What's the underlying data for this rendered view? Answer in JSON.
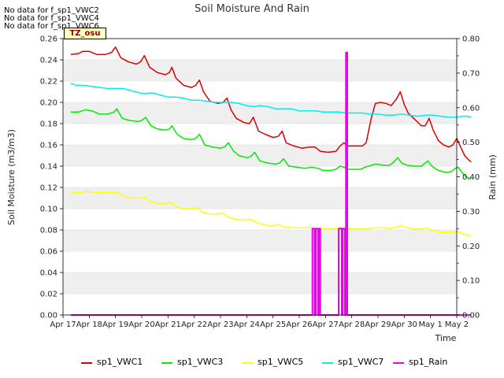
{
  "chart_data": {
    "type": "line",
    "title": "Soil Moisture And Rain",
    "xlabel": "Time",
    "ylabel_left": "Soil Moisture (m3/m3)",
    "ylabel_right": "Rain (mm)",
    "ylim_left": [
      0.0,
      0.26
    ],
    "ylim_right": [
      0.0,
      0.8
    ],
    "xlim": [
      0,
      15
    ],
    "x_tick_labels": [
      "Apr 17",
      "Apr 18",
      "Apr 19",
      "Apr 20",
      "Apr 21",
      "Apr 22",
      "Apr 23",
      "Apr 24",
      "Apr 25",
      "Apr 26",
      "Apr 27",
      "Apr 28",
      "Apr 29",
      "Apr 30",
      "May 1",
      "May 2"
    ],
    "y_tick_labels_left": [
      "0.00",
      "0.02",
      "0.04",
      "0.06",
      "0.08",
      "0.10",
      "0.12",
      "0.14",
      "0.16",
      "0.18",
      "0.20",
      "0.22",
      "0.24",
      "0.26"
    ],
    "y_tick_labels_right": [
      "0.00",
      "0.10",
      "0.20",
      "0.30",
      "0.40",
      "0.50",
      "0.60",
      "0.70",
      "0.80"
    ],
    "grid": true,
    "legend_position": "bottom",
    "series": [
      {
        "name": "sp1_VWC1",
        "color": "#dd0000",
        "axis": "left",
        "points": [
          [
            0.3,
            0.245
          ],
          [
            0.6,
            0.246
          ],
          [
            0.75,
            0.248
          ],
          [
            1.0,
            0.248
          ],
          [
            1.3,
            0.245
          ],
          [
            1.6,
            0.245
          ],
          [
            1.85,
            0.247
          ],
          [
            2.0,
            0.252
          ],
          [
            2.2,
            0.242
          ],
          [
            2.5,
            0.238
          ],
          [
            2.8,
            0.236
          ],
          [
            2.95,
            0.238
          ],
          [
            3.1,
            0.244
          ],
          [
            3.3,
            0.233
          ],
          [
            3.6,
            0.228
          ],
          [
            3.9,
            0.226
          ],
          [
            4.05,
            0.228
          ],
          [
            4.15,
            0.233
          ],
          [
            4.3,
            0.223
          ],
          [
            4.6,
            0.216
          ],
          [
            4.9,
            0.214
          ],
          [
            5.05,
            0.216
          ],
          [
            5.2,
            0.221
          ],
          [
            5.35,
            0.21
          ],
          [
            5.6,
            0.201
          ],
          [
            5.9,
            0.199
          ],
          [
            6.1,
            0.2
          ],
          [
            6.25,
            0.204
          ],
          [
            6.4,
            0.193
          ],
          [
            6.6,
            0.185
          ],
          [
            6.9,
            0.181
          ],
          [
            7.1,
            0.18
          ],
          [
            7.25,
            0.186
          ],
          [
            7.45,
            0.173
          ],
          [
            7.7,
            0.17
          ],
          [
            8.0,
            0.167
          ],
          [
            8.2,
            0.168
          ],
          [
            8.35,
            0.173
          ],
          [
            8.5,
            0.162
          ],
          [
            8.8,
            0.159
          ],
          [
            9.1,
            0.157
          ],
          [
            9.4,
            0.158
          ],
          [
            9.6,
            0.158
          ],
          [
            9.8,
            0.154
          ],
          [
            10.1,
            0.153
          ],
          [
            10.4,
            0.154
          ],
          [
            10.55,
            0.159
          ],
          [
            10.7,
            0.162
          ],
          [
            10.85,
            0.159
          ],
          [
            11.1,
            0.159
          ],
          [
            11.4,
            0.159
          ],
          [
            11.55,
            0.162
          ],
          [
            11.75,
            0.186
          ],
          [
            11.9,
            0.199
          ],
          [
            12.1,
            0.2
          ],
          [
            12.3,
            0.199
          ],
          [
            12.5,
            0.197
          ],
          [
            12.7,
            0.203
          ],
          [
            12.85,
            0.21
          ],
          [
            13.0,
            0.198
          ],
          [
            13.15,
            0.19
          ],
          [
            13.4,
            0.184
          ],
          [
            13.65,
            0.178
          ],
          [
            13.8,
            0.178
          ],
          [
            13.95,
            0.185
          ],
          [
            14.1,
            0.174
          ],
          [
            14.3,
            0.164
          ],
          [
            14.5,
            0.16
          ],
          [
            14.7,
            0.158
          ],
          [
            14.85,
            0.16
          ],
          [
            15.0,
            0.166
          ],
          [
            15.15,
            0.158
          ],
          [
            15.3,
            0.15
          ],
          [
            15.45,
            0.146
          ],
          [
            15.55,
            0.144
          ]
        ]
      },
      {
        "name": "sp1_VWC3",
        "color": "#00ee00",
        "axis": "left",
        "points": [
          [
            0.3,
            0.191
          ],
          [
            0.6,
            0.191
          ],
          [
            0.85,
            0.193
          ],
          [
            1.1,
            0.192
          ],
          [
            1.4,
            0.189
          ],
          [
            1.7,
            0.189
          ],
          [
            1.95,
            0.191
          ],
          [
            2.05,
            0.194
          ],
          [
            2.25,
            0.185
          ],
          [
            2.55,
            0.183
          ],
          [
            2.85,
            0.182
          ],
          [
            3.0,
            0.183
          ],
          [
            3.15,
            0.186
          ],
          [
            3.35,
            0.178
          ],
          [
            3.6,
            0.175
          ],
          [
            3.9,
            0.174
          ],
          [
            4.05,
            0.175
          ],
          [
            4.15,
            0.178
          ],
          [
            4.35,
            0.17
          ],
          [
            4.6,
            0.166
          ],
          [
            4.9,
            0.165
          ],
          [
            5.05,
            0.166
          ],
          [
            5.2,
            0.17
          ],
          [
            5.4,
            0.16
          ],
          [
            5.7,
            0.158
          ],
          [
            6.0,
            0.157
          ],
          [
            6.15,
            0.158
          ],
          [
            6.3,
            0.162
          ],
          [
            6.5,
            0.154
          ],
          [
            6.7,
            0.15
          ],
          [
            7.0,
            0.148
          ],
          [
            7.15,
            0.149
          ],
          [
            7.3,
            0.153
          ],
          [
            7.5,
            0.145
          ],
          [
            7.8,
            0.143
          ],
          [
            8.1,
            0.142
          ],
          [
            8.25,
            0.143
          ],
          [
            8.4,
            0.147
          ],
          [
            8.6,
            0.14
          ],
          [
            8.9,
            0.139
          ],
          [
            9.2,
            0.138
          ],
          [
            9.5,
            0.139
          ],
          [
            9.7,
            0.138
          ],
          [
            9.9,
            0.136
          ],
          [
            10.2,
            0.136
          ],
          [
            10.4,
            0.137
          ],
          [
            10.55,
            0.14
          ],
          [
            10.7,
            0.139
          ],
          [
            10.85,
            0.137
          ],
          [
            11.1,
            0.137
          ],
          [
            11.35,
            0.137
          ],
          [
            11.5,
            0.139
          ],
          [
            11.65,
            0.14
          ],
          [
            11.9,
            0.142
          ],
          [
            12.2,
            0.141
          ],
          [
            12.45,
            0.141
          ],
          [
            12.6,
            0.144
          ],
          [
            12.75,
            0.148
          ],
          [
            12.9,
            0.143
          ],
          [
            13.1,
            0.141
          ],
          [
            13.4,
            0.14
          ],
          [
            13.65,
            0.14
          ],
          [
            13.8,
            0.143
          ],
          [
            13.9,
            0.145
          ],
          [
            14.05,
            0.14
          ],
          [
            14.3,
            0.136
          ],
          [
            14.6,
            0.134
          ],
          [
            14.8,
            0.135
          ],
          [
            14.95,
            0.138
          ],
          [
            15.05,
            0.139
          ],
          [
            15.2,
            0.134
          ],
          [
            15.35,
            0.13
          ],
          [
            15.55,
            0.128
          ]
        ]
      },
      {
        "name": "sp1_VWC5",
        "color": "#ffff00",
        "axis": "left",
        "points": [
          [
            0.3,
            0.115
          ],
          [
            0.7,
            0.115
          ],
          [
            0.85,
            0.116
          ],
          [
            1.0,
            0.116
          ],
          [
            1.3,
            0.115
          ],
          [
            1.6,
            0.115
          ],
          [
            1.9,
            0.115
          ],
          [
            2.1,
            0.115
          ],
          [
            2.3,
            0.112
          ],
          [
            2.6,
            0.11
          ],
          [
            2.9,
            0.11
          ],
          [
            3.1,
            0.111
          ],
          [
            3.3,
            0.107
          ],
          [
            3.6,
            0.105
          ],
          [
            3.9,
            0.105
          ],
          [
            4.1,
            0.106
          ],
          [
            4.3,
            0.102
          ],
          [
            4.6,
            0.1
          ],
          [
            4.9,
            0.1
          ],
          [
            5.1,
            0.101
          ],
          [
            5.3,
            0.097
          ],
          [
            5.6,
            0.095
          ],
          [
            5.9,
            0.095
          ],
          [
            6.1,
            0.096
          ],
          [
            6.3,
            0.092
          ],
          [
            6.6,
            0.09
          ],
          [
            6.9,
            0.089
          ],
          [
            7.1,
            0.09
          ],
          [
            7.3,
            0.088
          ],
          [
            7.6,
            0.085
          ],
          [
            7.9,
            0.084
          ],
          [
            8.2,
            0.085
          ],
          [
            8.4,
            0.083
          ],
          [
            8.7,
            0.082
          ],
          [
            9.0,
            0.082
          ],
          [
            9.4,
            0.082
          ],
          [
            9.7,
            0.081
          ],
          [
            10.0,
            0.081
          ],
          [
            10.3,
            0.081
          ],
          [
            10.6,
            0.082
          ],
          [
            10.8,
            0.081
          ],
          [
            11.1,
            0.081
          ],
          [
            11.4,
            0.081
          ],
          [
            11.6,
            0.081
          ],
          [
            11.9,
            0.082
          ],
          [
            12.2,
            0.082
          ],
          [
            12.5,
            0.081
          ],
          [
            12.75,
            0.083
          ],
          [
            12.9,
            0.084
          ],
          [
            13.1,
            0.082
          ],
          [
            13.4,
            0.081
          ],
          [
            13.7,
            0.081
          ],
          [
            13.9,
            0.082
          ],
          [
            14.05,
            0.08
          ],
          [
            14.3,
            0.078
          ],
          [
            14.6,
            0.078
          ],
          [
            14.9,
            0.078
          ],
          [
            15.0,
            0.079
          ],
          [
            15.2,
            0.077
          ],
          [
            15.4,
            0.075
          ],
          [
            15.55,
            0.075
          ]
        ]
      },
      {
        "name": "sp1_VWC7",
        "color": "#00eeee",
        "axis": "left",
        "points": [
          [
            0.3,
            0.218
          ],
          [
            0.5,
            0.216
          ],
          [
            0.8,
            0.216
          ],
          [
            1.1,
            0.215
          ],
          [
            1.4,
            0.214
          ],
          [
            1.7,
            0.213
          ],
          [
            2.0,
            0.213
          ],
          [
            2.3,
            0.213
          ],
          [
            2.6,
            0.211
          ],
          [
            2.9,
            0.209
          ],
          [
            3.1,
            0.208
          ],
          [
            3.4,
            0.209
          ],
          [
            3.7,
            0.207
          ],
          [
            4.0,
            0.205
          ],
          [
            4.3,
            0.205
          ],
          [
            4.6,
            0.204
          ],
          [
            4.9,
            0.202
          ],
          [
            5.2,
            0.202
          ],
          [
            5.5,
            0.201
          ],
          [
            5.8,
            0.2
          ],
          [
            6.1,
            0.2
          ],
          [
            6.4,
            0.2
          ],
          [
            6.7,
            0.199
          ],
          [
            7.0,
            0.197
          ],
          [
            7.3,
            0.196
          ],
          [
            7.5,
            0.197
          ],
          [
            7.8,
            0.196
          ],
          [
            8.1,
            0.194
          ],
          [
            8.4,
            0.194
          ],
          [
            8.7,
            0.194
          ],
          [
            9.0,
            0.192
          ],
          [
            9.3,
            0.192
          ],
          [
            9.6,
            0.192
          ],
          [
            9.9,
            0.191
          ],
          [
            10.2,
            0.191
          ],
          [
            10.5,
            0.191
          ],
          [
            10.8,
            0.19
          ],
          [
            11.1,
            0.19
          ],
          [
            11.4,
            0.19
          ],
          [
            11.7,
            0.189
          ],
          [
            12.0,
            0.189
          ],
          [
            12.3,
            0.188
          ],
          [
            12.6,
            0.188
          ],
          [
            12.9,
            0.189
          ],
          [
            13.2,
            0.188
          ],
          [
            13.5,
            0.187
          ],
          [
            13.8,
            0.188
          ],
          [
            14.1,
            0.188
          ],
          [
            14.4,
            0.187
          ],
          [
            14.7,
            0.186
          ],
          [
            15.0,
            0.186
          ],
          [
            15.2,
            0.187
          ],
          [
            15.4,
            0.187
          ],
          [
            15.55,
            0.186
          ]
        ]
      },
      {
        "name": "sp1_Rain",
        "color": "#ee00ee",
        "axis": "right",
        "points": [
          [
            0.3,
            0.0
          ],
          [
            9.5,
            0.0
          ],
          [
            9.5,
            0.25
          ],
          [
            9.58,
            0.25
          ],
          [
            9.58,
            0.0
          ],
          [
            9.63,
            0.0
          ],
          [
            9.63,
            0.25
          ],
          [
            9.71,
            0.25
          ],
          [
            9.71,
            0.0
          ],
          [
            9.76,
            0.0
          ],
          [
            9.76,
            0.25
          ],
          [
            9.8,
            0.25
          ],
          [
            9.8,
            0.0
          ],
          [
            10.5,
            0.0
          ],
          [
            10.5,
            0.25
          ],
          [
            10.62,
            0.25
          ],
          [
            10.62,
            0.0
          ],
          [
            10.66,
            0.0
          ],
          [
            10.66,
            0.25
          ],
          [
            10.74,
            0.25
          ],
          [
            10.74,
            0.0
          ],
          [
            10.78,
            0.0
          ],
          [
            10.78,
            0.76
          ],
          [
            10.83,
            0.76
          ],
          [
            10.83,
            0.0
          ],
          [
            15.55,
            0.0
          ]
        ]
      }
    ]
  },
  "no_data_messages": [
    "No data for f_sp1_VWC2",
    "No data for f_sp1_VWC4",
    "No data for f_sp1_VWC6"
  ],
  "site_label": "TZ_osu"
}
